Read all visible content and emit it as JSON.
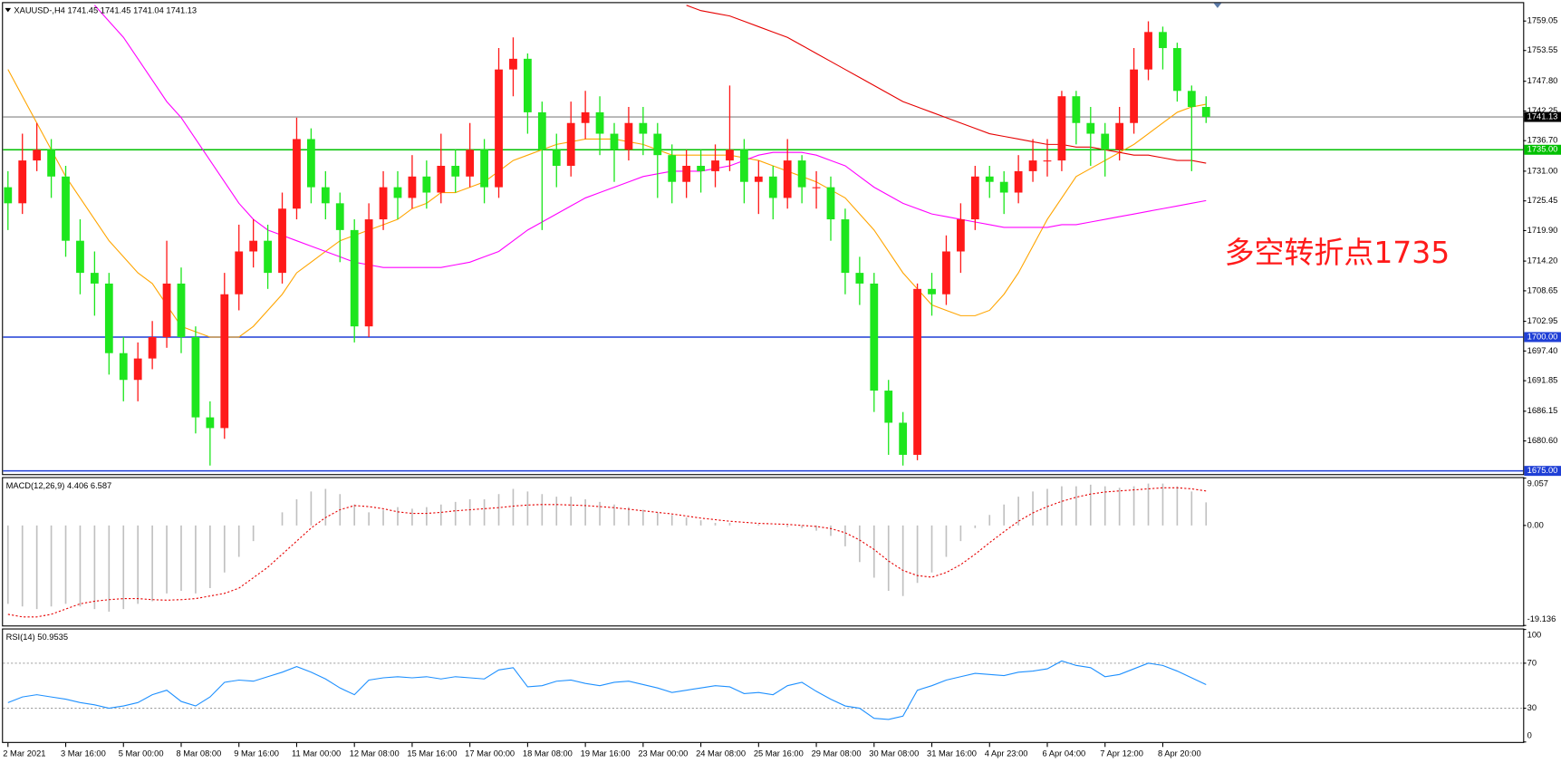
{
  "chart_data": [
    {
      "type": "candlestick",
      "title": "XAUUSD-,H4  1741.45 1741.45 1741.04 1741.13",
      "annotation": "多空转折点1735",
      "annotation_color": "#ff1a1a",
      "up_color": "#ff1a1a",
      "down_color": "#1ee61e",
      "categories": [
        "2 Mar 2021",
        null,
        null,
        null,
        "3 Mar 16:00",
        null,
        null,
        null,
        "5 Mar 00:00",
        null,
        null,
        null,
        "8 Mar 08:00",
        null,
        null,
        null,
        "9 Mar 16:00",
        null,
        null,
        null,
        "11 Mar 00:00",
        null,
        null,
        null,
        "12 Mar 08:00",
        null,
        null,
        null,
        "15 Mar 16:00",
        null,
        null,
        null,
        "17 Mar 00:00",
        null,
        null,
        null,
        "18 Mar 08:00",
        null,
        null,
        null,
        "19 Mar 16:00",
        null,
        null,
        null,
        "23 Mar 00:00",
        null,
        null,
        null,
        "24 Mar 08:00",
        null,
        null,
        null,
        "25 Mar 16:00",
        null,
        null,
        null,
        "29 Mar 08:00",
        null,
        null,
        null,
        "30 Mar 08:00",
        null,
        null,
        null,
        "31 Mar 16:00",
        null,
        null,
        null,
        "4 Apr 23:00",
        null,
        null,
        null,
        "6 Apr 04:00",
        null,
        null,
        null,
        "7 Apr 12:00",
        null,
        null,
        null,
        "8 Apr 20:00",
        null,
        null,
        null
      ],
      "open": [
        1728,
        1725,
        1733,
        1735,
        1730,
        1718,
        1712,
        1710,
        1697,
        1692,
        1696,
        1700,
        1710,
        1700,
        1685,
        1683,
        1708,
        1716,
        1718,
        1712,
        1724,
        1737,
        1728,
        1725,
        1720,
        1702,
        1722,
        1728,
        1726,
        1730,
        1727,
        1732,
        1730,
        1735,
        1728,
        1750,
        1752,
        1742,
        1735,
        1732,
        1740,
        1742,
        1738,
        1735,
        1740,
        1738,
        1734,
        1729,
        1732,
        1731,
        1733,
        1735,
        1729,
        1730,
        1726,
        1733,
        1728,
        1728,
        1722,
        1712,
        1710,
        1690,
        1684,
        1678,
        1709,
        1708,
        1716,
        1722,
        1730,
        1729,
        1727,
        1731,
        1733,
        1733,
        1745,
        1740,
        1738,
        1735,
        1740,
        1750,
        1757,
        1754,
        1746,
        1743
      ],
      "high": [
        1731,
        1738,
        1740,
        1737,
        1732,
        1722,
        1716,
        1712,
        1700,
        1699,
        1703,
        1718,
        1713,
        1702,
        1688,
        1712,
        1721,
        1722,
        1721,
        1727,
        1741,
        1739,
        1731,
        1727,
        1722,
        1725,
        1731,
        1731,
        1734,
        1733,
        1738,
        1735,
        1740,
        1737,
        1754,
        1756,
        1753,
        1744,
        1738,
        1744,
        1746,
        1745,
        1740,
        1743,
        1743,
        1740,
        1736,
        1735,
        1735,
        1736,
        1747,
        1737,
        1733,
        1732,
        1737,
        1734,
        1731,
        1730,
        1724,
        1715,
        1712,
        1692,
        1686,
        1710,
        1712,
        1719,
        1725,
        1732,
        1732,
        1731,
        1734,
        1737,
        1737,
        1746,
        1746,
        1743,
        1740,
        1743,
        1754,
        1759,
        1758,
        1755,
        1747,
        1745
      ],
      "low": [
        1720,
        1723,
        1731,
        1726,
        1715,
        1708,
        1704,
        1693,
        1688,
        1688,
        1694,
        1698,
        1697,
        1682,
        1676,
        1681,
        1705,
        1713,
        1709,
        1710,
        1722,
        1725,
        1722,
        1714,
        1699,
        1700,
        1720,
        1722,
        1724,
        1724,
        1725,
        1727,
        1728,
        1725,
        1726,
        1745,
        1738,
        1720,
        1728,
        1730,
        1737,
        1734,
        1729,
        1733,
        1734,
        1726,
        1725,
        1726,
        1727,
        1728,
        1731,
        1725,
        1723,
        1722,
        1724,
        1725,
        1724,
        1718,
        1708,
        1706,
        1686,
        1678,
        1676,
        1677,
        1704,
        1706,
        1712,
        1720,
        1726,
        1723,
        1725,
        1729,
        1730,
        1731,
        1736,
        1732,
        1730,
        1733,
        1738,
        1748,
        1750,
        1744,
        1731,
        1740
      ],
      "close": [
        1725,
        1733,
        1735,
        1730,
        1718,
        1712,
        1710,
        1697,
        1692,
        1696,
        1700,
        1710,
        1700,
        1685,
        1683,
        1708,
        1716,
        1718,
        1712,
        1724,
        1737,
        1728,
        1725,
        1720,
        1702,
        1722,
        1728,
        1726,
        1730,
        1727,
        1732,
        1730,
        1735,
        1728,
        1750,
        1752,
        1742,
        1735,
        1732,
        1740,
        1742,
        1738,
        1735,
        1740,
        1738,
        1734,
        1729,
        1732,
        1731,
        1733,
        1735,
        1729,
        1730,
        1726,
        1733,
        1728,
        1728,
        1722,
        1712,
        1710,
        1690,
        1684,
        1678,
        1709,
        1708,
        1716,
        1722,
        1730,
        1729,
        1727,
        1731,
        1733,
        1733,
        1745,
        1740,
        1738,
        1735,
        1740,
        1750,
        1757,
        1754,
        1746,
        1743,
        1741.13
      ],
      "overlays": [
        {
          "color": "#ffa500",
          "values": [
            1750,
            1745,
            1740,
            1735,
            1730,
            1726,
            1722,
            1718,
            1715,
            1712,
            1710,
            1706,
            1702,
            1701,
            1700,
            1700,
            1700,
            1702,
            1705,
            1708,
            1712,
            1714,
            1716,
            1718,
            1719,
            1720,
            1721,
            1722,
            1724,
            1725,
            1727,
            1727,
            1728,
            1729,
            1731,
            1733,
            1734,
            1735,
            1736,
            1736.5,
            1737,
            1737,
            1737,
            1736.5,
            1736,
            1735,
            1734,
            1734,
            1734,
            1734,
            1734,
            1733.5,
            1733,
            1732,
            1731,
            1730,
            1729,
            1727.5,
            1726,
            1723,
            1720,
            1716,
            1712,
            1709,
            1706,
            1705,
            1704,
            1704,
            1705,
            1708,
            1712,
            1717,
            1722,
            1726,
            1730,
            1731.5,
            1733,
            1734.5,
            1736,
            1738,
            1740,
            1742,
            1743,
            1743.5
          ]
        },
        {
          "color": "#ff00ff",
          "values": [
            null,
            null,
            null,
            null,
            null,
            null,
            1762,
            1759,
            1756,
            1752,
            1748,
            1744,
            1741,
            1737,
            1733,
            1729,
            1725,
            1722,
            1720,
            1719,
            1718,
            1717,
            1716,
            1715,
            1714,
            1713.5,
            1713,
            1713,
            1713,
            1713,
            1713,
            1713.5,
            1714,
            1715,
            1716,
            1718,
            1720,
            1721.5,
            1723,
            1724.5,
            1726,
            1727,
            1728,
            1729,
            1730,
            1730.5,
            1731,
            1731,
            1731,
            1731.5,
            1732,
            1733,
            1734,
            1734.5,
            1734.5,
            1734.5,
            1734,
            1733,
            1732,
            1730,
            1728,
            1726.5,
            1725,
            1724,
            1723,
            1722.5,
            1722,
            1721.5,
            1721,
            1720.5,
            1720.5,
            1720.5,
            1720.5,
            1721,
            1721,
            1721.5,
            1722,
            1722.5,
            1723,
            1723.5,
            1724,
            1724.5,
            1725,
            1725.5
          ]
        },
        {
          "color": "#e60000",
          "values": [
            null,
            null,
            null,
            null,
            null,
            null,
            null,
            null,
            null,
            null,
            null,
            null,
            null,
            null,
            null,
            null,
            null,
            null,
            null,
            null,
            null,
            null,
            null,
            null,
            null,
            null,
            null,
            null,
            null,
            null,
            null,
            null,
            null,
            null,
            null,
            null,
            null,
            null,
            null,
            null,
            null,
            null,
            null,
            null,
            null,
            null,
            null,
            1762,
            1761,
            1760.5,
            1760,
            1759,
            1758,
            1757,
            1756,
            1754.5,
            1753,
            1751.5,
            1750,
            1748.5,
            1747,
            1745.5,
            1744,
            1743,
            1742,
            1741,
            1740,
            1739,
            1738,
            1737.5,
            1737,
            1736.5,
            1736,
            1736,
            1735.5,
            1735.5,
            1735,
            1734.5,
            1734,
            1734,
            1733.5,
            1733,
            1733,
            1732.5
          ]
        }
      ],
      "levels": [
        {
          "value": 1741.13,
          "label": "1741.13",
          "color": "#9a9a9a",
          "tag": "#000000"
        },
        {
          "value": 1735,
          "label": "1735.00",
          "color": "#00c000",
          "tag": "#00c000"
        },
        {
          "value": 1700,
          "label": "1700.00",
          "color": "#1f3fd6",
          "tag": "#1f3fd6"
        },
        {
          "value": 1675,
          "label": "1675.00",
          "color": "#1f3fd6",
          "tag": "#1f3fd6"
        }
      ],
      "ylim": [
        1674.4,
        1762.4
      ],
      "yticks": [
        {
          "value": 1759.05,
          "label": "1759.05"
        },
        {
          "value": 1753.55,
          "label": "1753.55"
        },
        {
          "value": 1747.8,
          "label": "1747.80"
        },
        {
          "value": 1742.25,
          "label": "1742.25"
        },
        {
          "value": 1736.7,
          "label": "1736.70"
        },
        {
          "value": 1731,
          "label": "1731.00"
        },
        {
          "value": 1725.45,
          "label": "1725.45"
        },
        {
          "value": 1719.9,
          "label": "1719.90"
        },
        {
          "value": 1714.2,
          "label": "1714.20"
        },
        {
          "value": 1708.65,
          "label": "1708.65"
        },
        {
          "value": 1702.95,
          "label": "1702.95"
        },
        {
          "value": 1697.4,
          "label": "1697.40"
        },
        {
          "value": 1691.85,
          "label": "1691.85"
        },
        {
          "value": 1686.15,
          "label": "1686.15"
        },
        {
          "value": 1680.6,
          "label": "1680.60"
        }
      ]
    },
    {
      "type": "macd",
      "title": "MACD(12,26,9) 4.406 6.587",
      "histogram_color": "#c0c0c0",
      "signal_color": "#e60000",
      "histogram": [
        -15,
        -15.5,
        -16,
        -15.5,
        -15,
        -15.5,
        -16,
        -16.5,
        -16,
        -15,
        -14.5,
        -13,
        -12.5,
        -13,
        -12,
        -9,
        -6,
        -3,
        0,
        2.5,
        5,
        6.5,
        7,
        6,
        4,
        2.5,
        3,
        3.5,
        3.2,
        3.5,
        4,
        4.5,
        5,
        5,
        6,
        7,
        6.5,
        6,
        5.5,
        5.5,
        5,
        4.5,
        4,
        3.5,
        3,
        2.5,
        2,
        1.5,
        1,
        0.5,
        0.5,
        0,
        0.2,
        0,
        -0.3,
        -0.5,
        -1,
        -2,
        -4,
        -7,
        -10,
        -12.5,
        -13.5,
        -11,
        -9,
        -6,
        -3,
        -0.5,
        2,
        4,
        5.5,
        6.5,
        7,
        7.5,
        7.5,
        7.8,
        7.5,
        7.2,
        7.5,
        8,
        8,
        7.5,
        6.5,
        4.406
      ],
      "signal": [
        -17,
        -17.5,
        -17.5,
        -17,
        -16,
        -15,
        -14.5,
        -14.2,
        -14,
        -14,
        -14.2,
        -14.3,
        -14.2,
        -14,
        -13.5,
        -13,
        -12,
        -10,
        -8,
        -5.5,
        -3,
        -0.5,
        1.5,
        3,
        3.8,
        3.6,
        3.2,
        2.6,
        2.3,
        2.3,
        2.5,
        2.8,
        3,
        3.2,
        3.4,
        3.7,
        3.9,
        4,
        4,
        3.9,
        3.8,
        3.6,
        3.4,
        3.1,
        2.8,
        2.5,
        2.2,
        1.8,
        1.4,
        1.1,
        0.8,
        0.6,
        0.4,
        0.3,
        0.2,
        0,
        -0.2,
        -0.6,
        -1.4,
        -2.8,
        -4.6,
        -6.8,
        -8.6,
        -9.6,
        -9.9,
        -9,
        -7.5,
        -5.5,
        -3.3,
        -1.2,
        0.8,
        2.4,
        3.6,
        4.6,
        5.4,
        6,
        6.4,
        6.6,
        6.8,
        7,
        7.2,
        7.2,
        7,
        6.587
      ],
      "ylim": [
        -19.136,
        9.057
      ],
      "yticks": [
        9.057,
        {
          "value": 0,
          "label": "0.00"
        },
        -19.136
      ]
    },
    {
      "type": "line",
      "title": "RSI(14) 50.9535",
      "color": "#1e90ff",
      "values": [
        35,
        40,
        42,
        40,
        38,
        35,
        33,
        30,
        32,
        35,
        42,
        46,
        36,
        32,
        40,
        53,
        55,
        54,
        58,
        62,
        67,
        62,
        56,
        48,
        42,
        55,
        57,
        58,
        57,
        58,
        56,
        58,
        57,
        56,
        64,
        66,
        49,
        50,
        54,
        55,
        52,
        50,
        53,
        54,
        51,
        48,
        44,
        46,
        48,
        50,
        49,
        43,
        44,
        42,
        50,
        53,
        45,
        38,
        32,
        30,
        21,
        20,
        23,
        46,
        50,
        55,
        58,
        61,
        60,
        59,
        62,
        63,
        65,
        72,
        68,
        66,
        58,
        60,
        65,
        70,
        68,
        63,
        57,
        50.9535
      ],
      "levels": [
        70,
        30
      ],
      "ylim": [
        0,
        100
      ],
      "yticks": [
        100,
        70,
        30,
        0
      ]
    }
  ]
}
